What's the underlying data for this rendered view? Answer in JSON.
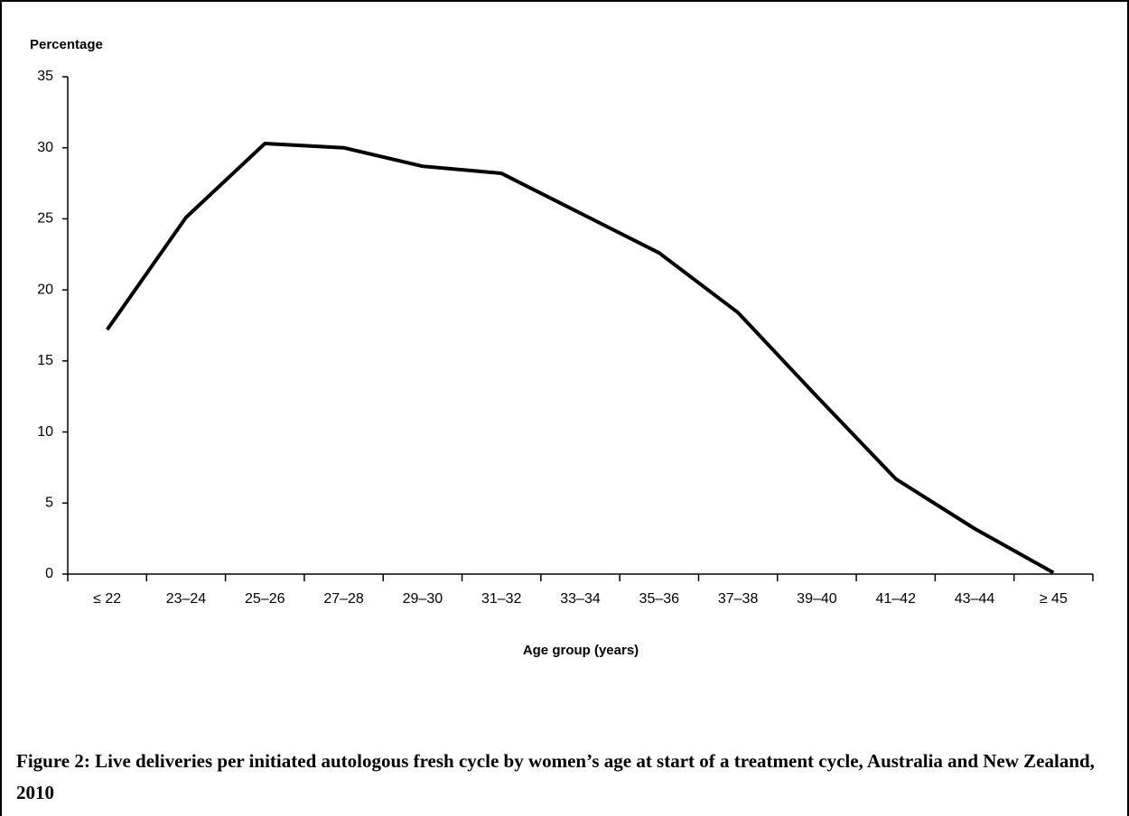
{
  "chart_data": {
    "type": "line",
    "y_label": "Percentage",
    "x_label": "Age group (years)",
    "caption": "Figure 2: Live deliveries per initiated autologous fresh cycle by women’s age at start of a treatment cycle, Australia and New Zealand, 2010",
    "categories": [
      "≤ 22",
      "23–24",
      "25–26",
      "27–28",
      "29–30",
      "31–32",
      "33–34",
      "35–36",
      "37–38",
      "39–40",
      "41–42",
      "43–44",
      "≥ 45"
    ],
    "values": [
      17.2,
      25.1,
      30.3,
      30.0,
      28.7,
      28.2,
      25.4,
      22.6,
      18.4,
      12.5,
      6.7,
      3.2,
      0.1
    ],
    "color": "#000000",
    "ylim": [
      0,
      35
    ],
    "yticks": [
      0,
      5,
      10,
      15,
      20,
      25,
      30,
      35
    ],
    "grid": false
  }
}
